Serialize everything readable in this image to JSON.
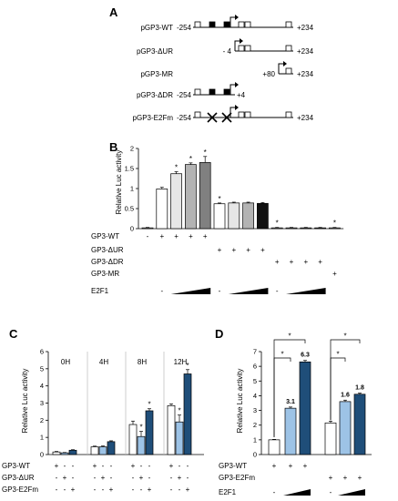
{
  "panels": {
    "A": {
      "letter": "A",
      "constructs": [
        {
          "name": "pGP3-WT",
          "left": "-254",
          "right": "+234"
        },
        {
          "name": "pGP3-ΔUR",
          "left": "- 4",
          "right": "+234"
        },
        {
          "name": "pGP3-MR",
          "left": "+80",
          "right": "+234"
        },
        {
          "name": "pGP3-ΔDR",
          "left": "-254",
          "right": "+4"
        },
        {
          "name": "pGP3-E2Fm",
          "left": "-254",
          "right": "+234"
        }
      ]
    },
    "B": {
      "letter": "B",
      "row_labels": [
        "GP3-WT",
        "GP3-ΔUR",
        "GP3-ΔDR",
        "GP3-MR",
        "E2F1"
      ],
      "minus": "-",
      "plus": "+",
      "star": "*"
    },
    "C": {
      "letter": "C",
      "time_labels": [
        "0H",
        "4H",
        "8H",
        "12H"
      ],
      "row_labels": [
        "GP3-WT",
        "GP3-ΔUR",
        "GP3-E2Fm"
      ],
      "minus": "-",
      "plus": "+"
    },
    "D": {
      "letter": "D",
      "row_labels": [
        "GP3-WT",
        "GP3-E2Fm",
        "E2F1"
      ],
      "annotations": [
        "3.1",
        "6.3",
        "1.6",
        "1.8"
      ],
      "minus": "-",
      "plus": "+"
    }
  },
  "chart_data": [
    {
      "panel": "B",
      "type": "bar",
      "ylabel": "Relative Luc activity",
      "ylim": [
        0,
        2
      ],
      "yticks": [
        "0",
        "0.5",
        "1",
        "1.5",
        "2"
      ],
      "values": [
        0.02,
        0.99,
        1.37,
        1.6,
        1.65,
        0.62,
        0.64,
        0.64,
        0.63,
        0.02,
        0.02,
        0.02,
        0.02,
        0.02
      ],
      "errors": [
        0.01,
        0.04,
        0.05,
        0.04,
        0.15,
        0.02,
        0.02,
        0.02,
        0.02,
        0.01,
        0.01,
        0.01,
        0.01,
        0.01
      ],
      "fills": [
        "#ffffff",
        "#ffffff",
        "#e6e6e6",
        "#b3b3b3",
        "#808080",
        "#ffffff",
        "#e6e6e6",
        "#b3b3b3",
        "#111111",
        "#ffffff",
        "#e6e6e6",
        "#b3b3b3",
        "#808080",
        "#ffffff"
      ],
      "stars": [
        false,
        false,
        true,
        true,
        true,
        true,
        false,
        false,
        false,
        true,
        false,
        false,
        false,
        true
      ],
      "conditions": [
        [
          "-",
          "+",
          "+",
          "+",
          "+",
          "",
          "",
          "",
          "",
          "",
          "",
          "",
          "",
          ""
        ],
        [
          "",
          "",
          "",
          "",
          "",
          "+",
          "+",
          "+",
          "+",
          "",
          "",
          "",
          "",
          ""
        ],
        [
          "",
          "",
          "",
          "",
          "",
          "",
          "",
          "",
          "",
          "+",
          "+",
          "+",
          "+",
          ""
        ],
        [
          "",
          "",
          "",
          "",
          "",
          "",
          "",
          "",
          "",
          "",
          "",
          "",
          "",
          "+"
        ]
      ],
      "e2f1_minus_groups": [
        1,
        5,
        9
      ]
    },
    {
      "panel": "C",
      "type": "bar",
      "ylabel": "Relative Luc activity",
      "ylim": [
        0,
        6
      ],
      "yticks": [
        "0",
        "1",
        "2",
        "3",
        "4",
        "5",
        "6"
      ],
      "categories": [
        "0H",
        "4H",
        "8H",
        "12H"
      ],
      "series": [
        {
          "values": [
            0.15,
            0.45,
            1.75,
            2.85
          ],
          "errors": [
            0.03,
            0.04,
            0.2,
            0.1
          ],
          "color": "#ffffff"
        },
        {
          "values": [
            0.1,
            0.45,
            1.05,
            1.9
          ],
          "errors": [
            0.02,
            0.05,
            0.3,
            0.4
          ],
          "color": "#9dc3e6"
        },
        {
          "values": [
            0.25,
            0.75,
            2.55,
            4.7
          ],
          "errors": [
            0.03,
            0.05,
            0.12,
            0.25
          ],
          "color": "#1f4e79"
        }
      ],
      "stars": [
        [
          false,
          false,
          false,
          false
        ],
        [
          false,
          false,
          true,
          true
        ],
        [
          false,
          false,
          true,
          true
        ]
      ],
      "conditions": [
        [
          "+",
          "-",
          "-"
        ],
        [
          "-",
          "+",
          "-"
        ],
        [
          "-",
          "-",
          "+"
        ]
      ]
    },
    {
      "panel": "D",
      "type": "bar",
      "ylabel": "Relative Luc activity",
      "ylim": [
        0,
        7
      ],
      "yticks": [
        "0",
        "1",
        "2",
        "3",
        "4",
        "5",
        "6",
        "7"
      ],
      "values": [
        1.0,
        3.15,
        6.3,
        2.15,
        3.6,
        4.1
      ],
      "errors": [
        0.03,
        0.08,
        0.1,
        0.12,
        0.1,
        0.08
      ],
      "fills": [
        "#ffffff",
        "#9dc3e6",
        "#1f4e79",
        "#ffffff",
        "#9dc3e6",
        "#1f4e79"
      ],
      "conditions": [
        [
          "+",
          "+",
          "+",
          "",
          "",
          ""
        ],
        [
          "",
          "",
          "",
          "+",
          "+",
          "+"
        ]
      ]
    }
  ]
}
